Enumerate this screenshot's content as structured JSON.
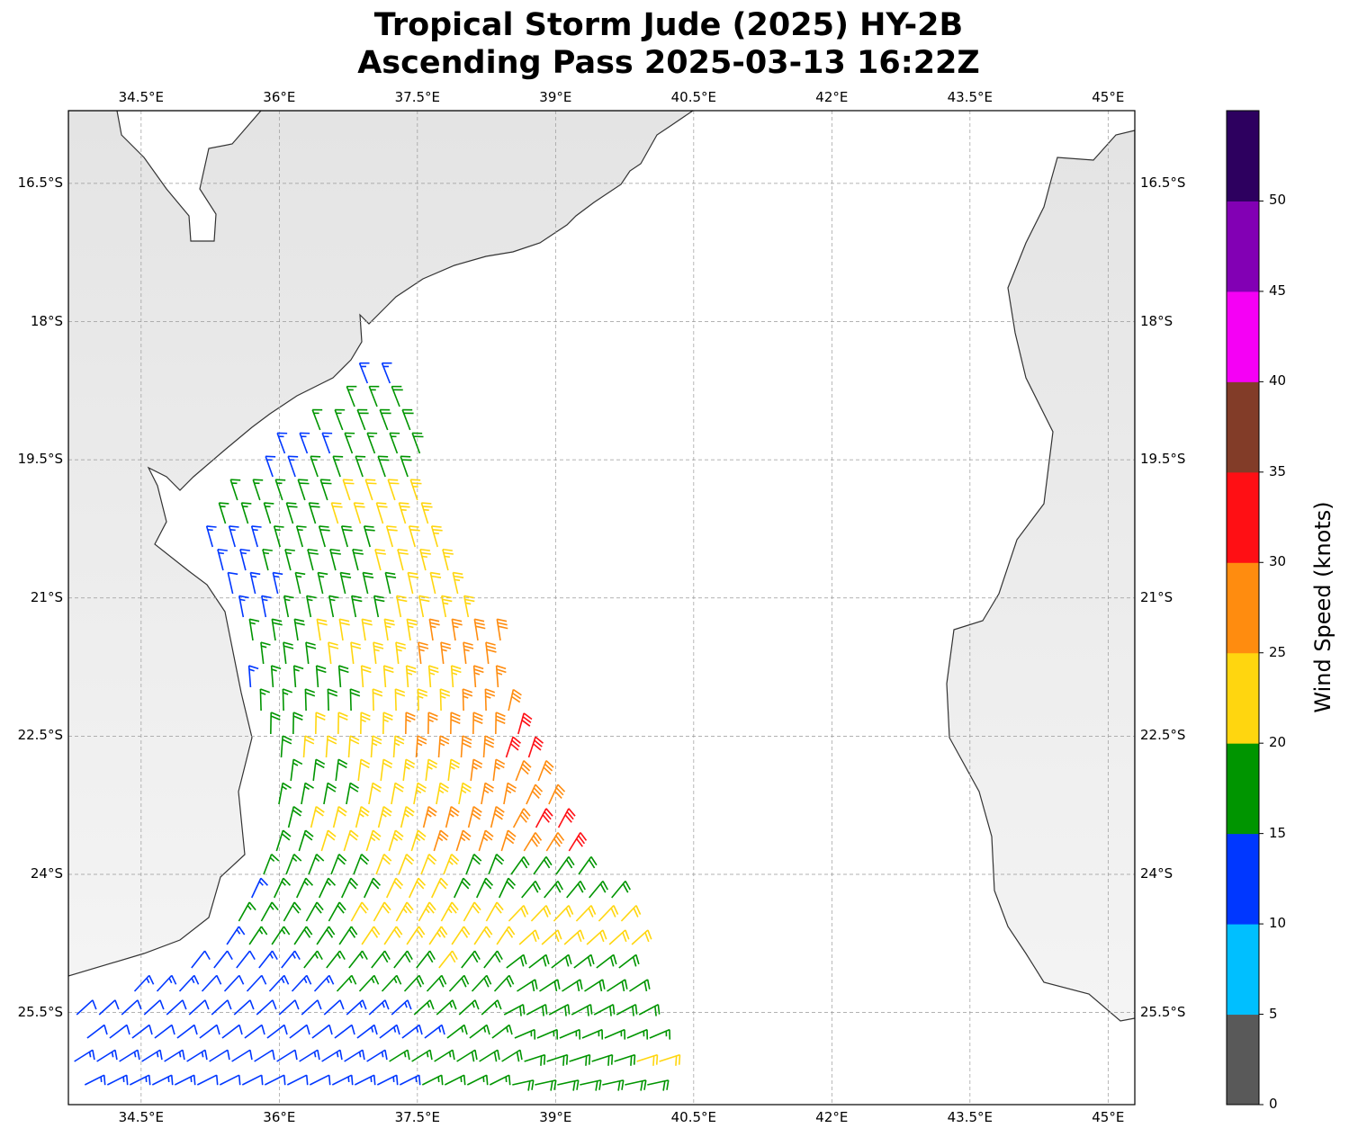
{
  "title": {
    "line1": "Tropical Storm Jude (2025) HY-2B",
    "line2": "Ascending Pass 2025-03-13 16:22Z"
  },
  "map": {
    "extent": {
      "lon_min": 33.71,
      "lon_max": 45.29,
      "lat_min": -26.5,
      "lat_max": -15.71
    },
    "lon_ticks": [
      {
        "value": 34.5,
        "label": "34.5°E"
      },
      {
        "value": 36,
        "label": "36°E"
      },
      {
        "value": 37.5,
        "label": "37.5°E"
      },
      {
        "value": 39,
        "label": "39°E"
      },
      {
        "value": 40.5,
        "label": "40.5°E"
      },
      {
        "value": 42,
        "label": "42°E"
      },
      {
        "value": 43.5,
        "label": "43.5°E"
      },
      {
        "value": 45,
        "label": "45°E"
      }
    ],
    "lat_ticks": [
      {
        "value": -16.5,
        "label": "16.5°S"
      },
      {
        "value": -18,
        "label": "18°S"
      },
      {
        "value": -19.5,
        "label": "19.5°S"
      },
      {
        "value": -21,
        "label": "21°S"
      },
      {
        "value": -22.5,
        "label": "22.5°S"
      },
      {
        "value": -24,
        "label": "24°S"
      },
      {
        "value": -25.5,
        "label": "25.5°S"
      }
    ]
  },
  "colorbar": {
    "label": "Wind Speed (knots)",
    "ticks": [
      "0",
      "5",
      "10",
      "15",
      "20",
      "25",
      "30",
      "35",
      "40",
      "45",
      "50"
    ],
    "bins": [
      {
        "min": 0,
        "max": 5,
        "color": "#595959"
      },
      {
        "min": 5,
        "max": 10,
        "color": "#00bfff"
      },
      {
        "min": 10,
        "max": 15,
        "color": "#0037ff"
      },
      {
        "min": 15,
        "max": 20,
        "color": "#009500"
      },
      {
        "min": 20,
        "max": 25,
        "color": "#ffd60f"
      },
      {
        "min": 25,
        "max": 30,
        "color": "#ff8c0f"
      },
      {
        "min": 30,
        "max": 35,
        "color": "#ff0f14"
      },
      {
        "min": 35,
        "max": 40,
        "color": "#823c28"
      },
      {
        "min": 40,
        "max": 45,
        "color": "#f500f5"
      },
      {
        "min": 45,
        "max": 50,
        "color": "#8200b4"
      },
      {
        "min": 50,
        "max": 55,
        "color": "#2d005f"
      }
    ]
  }
}
